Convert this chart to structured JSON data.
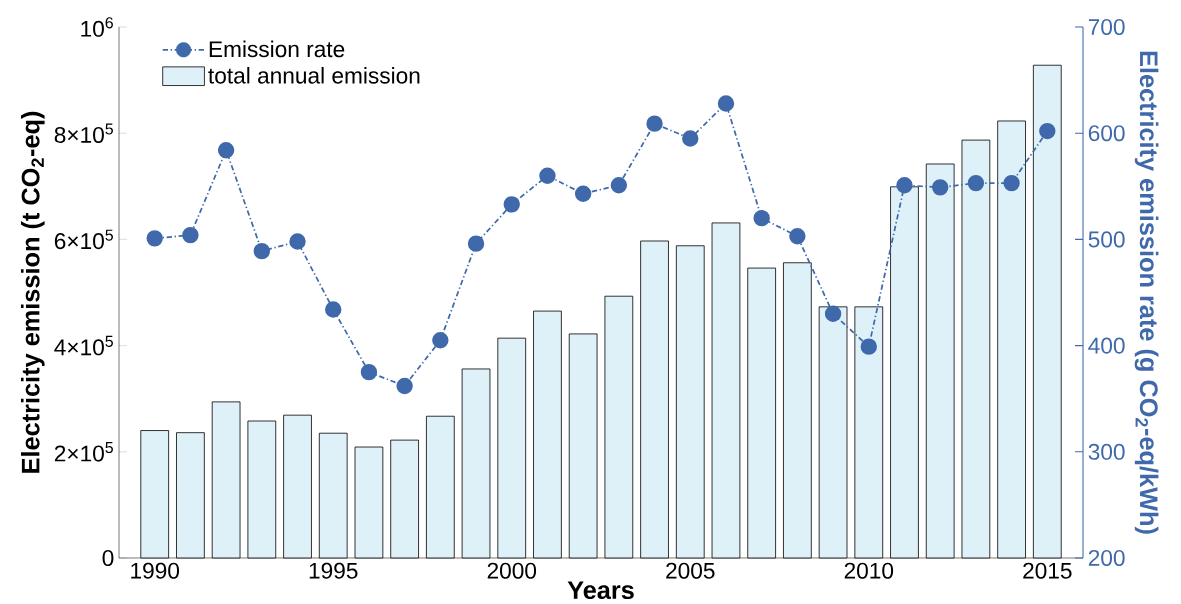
{
  "chart_data": {
    "type": "bar",
    "xlabel": "Years",
    "ylabel": "Electricity emission (t CO$_{2}$-eq)",
    "y2label": "Electricity emission rate (g CO$_{2}$-eq/kWh)",
    "x": [
      1990,
      1991,
      1992,
      1993,
      1994,
      1995,
      1996,
      1997,
      1998,
      1999,
      2000,
      2001,
      2002,
      2003,
      2004,
      2005,
      2006,
      2007,
      2008,
      2009,
      2010,
      2011,
      2012,
      2013,
      2014,
      2015
    ],
    "series": [
      {
        "name": "Emission rate",
        "type": "line",
        "axis": "y2",
        "color": "#3f69aa",
        "marker": "circle",
        "line_style": "dashed",
        "values": [
          501,
          504,
          584,
          489,
          498,
          434,
          375,
          362,
          405,
          496,
          533,
          560,
          543,
          551,
          609,
          595,
          628,
          520,
          503,
          430,
          399,
          551,
          549,
          553,
          553,
          602
        ]
      },
      {
        "name": "total annual emission",
        "color": "#dff1f8",
        "values": [
          240000,
          236000,
          294000,
          258000,
          269000,
          235000,
          209000,
          222000,
          267000,
          356000,
          414000,
          465000,
          422000,
          493000,
          597000,
          588000,
          631000,
          546000,
          556000,
          473000,
          473000,
          699000,
          742000,
          787000,
          823000,
          928000
        ]
      }
    ],
    "xlim": [
      1989,
      2016
    ],
    "xticks": [
      1990,
      1995,
      2000,
      2005,
      2010,
      2015
    ],
    "ylim": [
      0,
      1000000
    ],
    "yticks": [
      0,
      {
        "value": 200000,
        "label": "2×10$^{5}$"
      },
      {
        "value": 400000,
        "label": "4×10$^{5}$"
      },
      {
        "value": 600000,
        "label": "6×10$^{5}$"
      },
      {
        "value": 800000,
        "label": "8×10$^{5}$"
      },
      {
        "value": 1000000,
        "label": "10$^{6}$"
      }
    ],
    "y2lim": [
      200,
      700
    ],
    "y2ticks": [
      200,
      300,
      400,
      500,
      600,
      700
    ],
    "grid": false,
    "legend": "top left"
  }
}
